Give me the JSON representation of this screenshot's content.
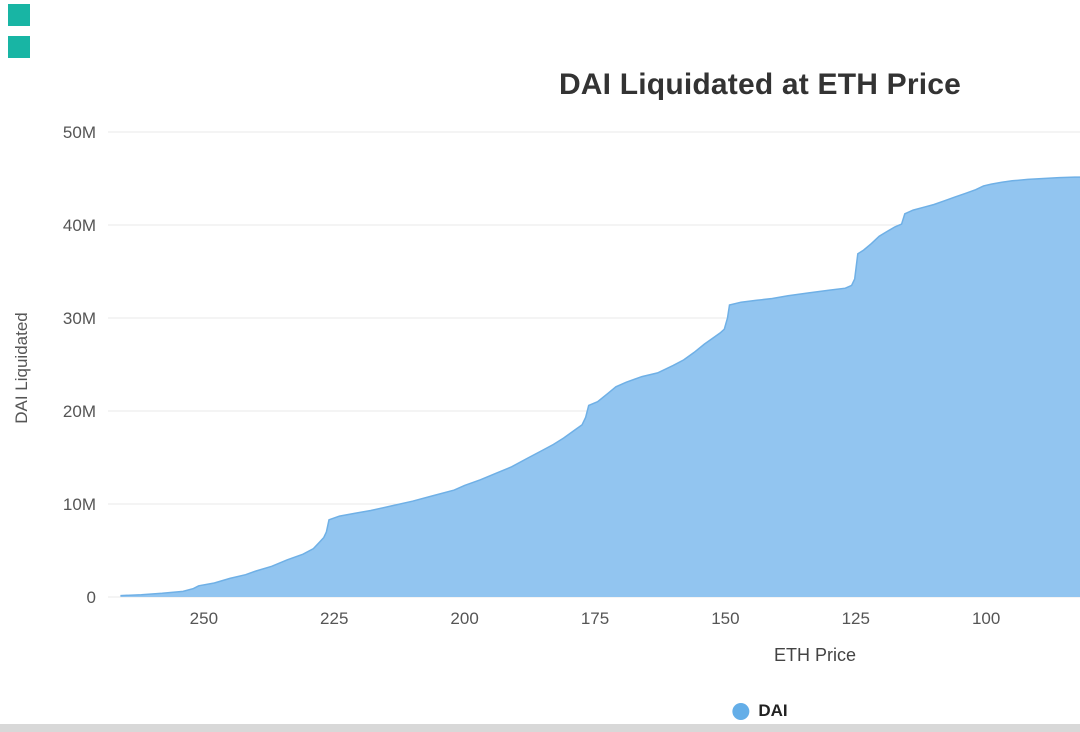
{
  "decorations": {
    "teal_square_color": "#18b5a4",
    "bottom_bar_color": "#d8d8d8"
  },
  "chart_data": {
    "type": "area",
    "title": "DAI Liquidated at ETH Price",
    "xlabel": "ETH Price",
    "ylabel": "DAI Liquidated",
    "grid": "horizontal",
    "legend_position": "bottom",
    "legend": [
      {
        "label": "DAI",
        "color": "#64aee8"
      }
    ],
    "colors": {
      "grid": "#e9e9e9",
      "tick_text": "#555555",
      "area_fill": "#92c5f0",
      "area_stroke": "#6fb0e6"
    },
    "x_axis": {
      "reversed": true,
      "min": 268,
      "max": 82,
      "ticks": [
        250,
        225,
        200,
        175,
        150,
        125,
        100
      ]
    },
    "y_axis": {
      "unit": "DAI (millions)",
      "min": 0,
      "max": 50,
      "ticks": [
        {
          "value": 0,
          "label": "0"
        },
        {
          "value": 10,
          "label": "10M"
        },
        {
          "value": 20,
          "label": "20M"
        },
        {
          "value": 30,
          "label": "30M"
        },
        {
          "value": 40,
          "label": "40M"
        },
        {
          "value": 50,
          "label": "50M"
        }
      ]
    },
    "series": [
      {
        "name": "DAI",
        "fill": "#92c5f0",
        "stroke": "#6fb0e6",
        "point_format": [
          "eth_price",
          "dai_liquidated_millions"
        ],
        "points": [
          [
            266,
            0.15
          ],
          [
            262,
            0.25
          ],
          [
            258,
            0.4
          ],
          [
            254,
            0.6
          ],
          [
            252,
            0.9
          ],
          [
            251,
            1.2
          ],
          [
            248,
            1.5
          ],
          [
            245,
            2.0
          ],
          [
            242,
            2.4
          ],
          [
            240,
            2.8
          ],
          [
            237,
            3.3
          ],
          [
            234,
            4.0
          ],
          [
            231,
            4.6
          ],
          [
            229,
            5.2
          ],
          [
            228,
            5.8
          ],
          [
            227,
            6.4
          ],
          [
            226.5,
            7.0
          ],
          [
            226,
            8.3
          ],
          [
            224,
            8.7
          ],
          [
            221,
            9.0
          ],
          [
            218,
            9.3
          ],
          [
            214,
            9.8
          ],
          [
            210,
            10.3
          ],
          [
            206,
            10.9
          ],
          [
            202,
            11.5
          ],
          [
            200,
            12.0
          ],
          [
            197,
            12.6
          ],
          [
            194,
            13.3
          ],
          [
            191,
            14.0
          ],
          [
            188,
            14.9
          ],
          [
            185,
            15.8
          ],
          [
            183,
            16.4
          ],
          [
            181,
            17.1
          ],
          [
            179,
            17.9
          ],
          [
            177.5,
            18.5
          ],
          [
            176.8,
            19.3
          ],
          [
            176.2,
            20.6
          ],
          [
            174.5,
            21.0
          ],
          [
            172.5,
            21.9
          ],
          [
            171,
            22.6
          ],
          [
            169,
            23.1
          ],
          [
            166,
            23.7
          ],
          [
            163,
            24.1
          ],
          [
            160,
            24.9
          ],
          [
            158,
            25.5
          ],
          [
            156,
            26.3
          ],
          [
            154,
            27.2
          ],
          [
            152.5,
            27.8
          ],
          [
            151,
            28.4
          ],
          [
            150.2,
            28.8
          ],
          [
            149.6,
            30.0
          ],
          [
            149.2,
            31.4
          ],
          [
            147,
            31.7
          ],
          [
            144,
            31.9
          ],
          [
            141,
            32.1
          ],
          [
            138,
            32.4
          ],
          [
            134,
            32.7
          ],
          [
            130,
            33.0
          ],
          [
            127,
            33.2
          ],
          [
            125.8,
            33.5
          ],
          [
            125.2,
            34.2
          ],
          [
            124.6,
            36.9
          ],
          [
            123.5,
            37.3
          ],
          [
            122,
            38.0
          ],
          [
            120.5,
            38.8
          ],
          [
            119,
            39.3
          ],
          [
            117.5,
            39.8
          ],
          [
            116.2,
            40.1
          ],
          [
            115.6,
            41.2
          ],
          [
            114,
            41.6
          ],
          [
            112,
            41.9
          ],
          [
            110,
            42.2
          ],
          [
            108,
            42.6
          ],
          [
            106,
            43.0
          ],
          [
            104,
            43.4
          ],
          [
            102,
            43.8
          ],
          [
            100.5,
            44.2
          ],
          [
            99,
            44.4
          ],
          [
            97,
            44.6
          ],
          [
            95,
            44.75
          ],
          [
            92,
            44.9
          ],
          [
            89,
            45.0
          ],
          [
            86,
            45.1
          ],
          [
            83,
            45.15
          ],
          [
            82,
            45.15
          ]
        ]
      }
    ]
  }
}
